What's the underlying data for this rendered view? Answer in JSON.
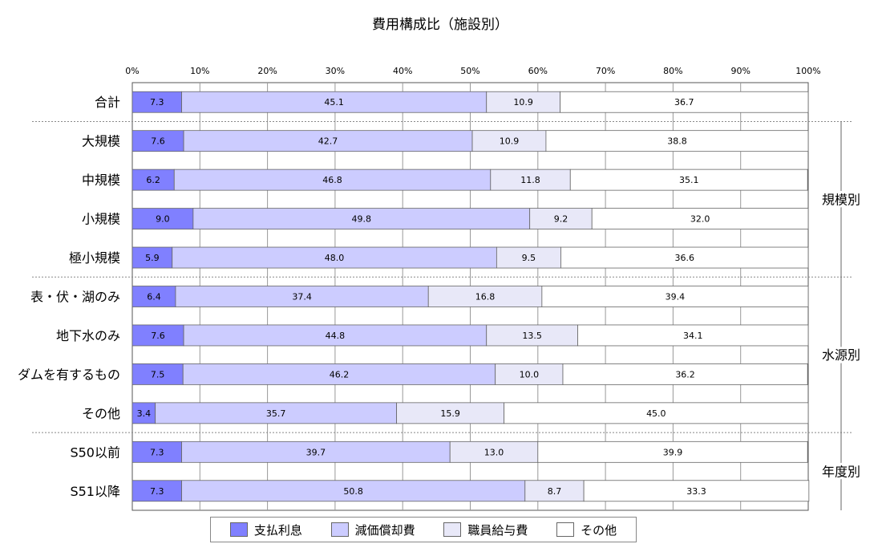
{
  "chart_data": {
    "type": "bar",
    "orientation": "horizontal",
    "stacked": "percent",
    "title": "費用構成比（施設別）",
    "x_tick_labels": [
      "0%",
      "10%",
      "20%",
      "30%",
      "40%",
      "50%",
      "60%",
      "70%",
      "80%",
      "90%",
      "100%"
    ],
    "xlim": [
      0,
      100
    ],
    "categories": [
      "合計",
      "大規模",
      "中規模",
      "小規模",
      "極小規模",
      "表・伏・湖のみ",
      "地下水のみ",
      "ダムを有するもの",
      "その他",
      "S50以前",
      "S51以降"
    ],
    "series": [
      {
        "name": "支払利息",
        "color": "#8080ff",
        "values": [
          7.3,
          7.6,
          6.2,
          9.0,
          5.9,
          6.4,
          7.6,
          7.5,
          3.4,
          7.3,
          7.3
        ]
      },
      {
        "name": "減価償却費",
        "color": "#ccccff",
        "values": [
          45.1,
          42.7,
          46.8,
          49.8,
          48.0,
          37.4,
          44.8,
          46.2,
          35.7,
          39.7,
          50.8
        ]
      },
      {
        "name": "職員給与費",
        "color": "#e8e8f8",
        "values": [
          10.9,
          10.9,
          11.8,
          9.2,
          9.5,
          16.8,
          13.5,
          10.0,
          15.9,
          13.0,
          8.7
        ]
      },
      {
        "name": "その他",
        "color": "#ffffff",
        "values": [
          36.7,
          38.8,
          35.1,
          32.0,
          36.6,
          39.4,
          34.1,
          36.2,
          45.0,
          39.9,
          33.3
        ]
      }
    ],
    "groups": [
      {
        "label": "規模別",
        "categories": [
          "大規模",
          "中規模",
          "小規模",
          "極小規模"
        ]
      },
      {
        "label": "水源別",
        "categories": [
          "表・伏・湖のみ",
          "地下水のみ",
          "ダムを有するもの",
          "その他"
        ]
      },
      {
        "label": "年度別",
        "categories": [
          "S50以前",
          "S51以降"
        ]
      }
    ],
    "grid": true,
    "legend_position": "bottom"
  }
}
